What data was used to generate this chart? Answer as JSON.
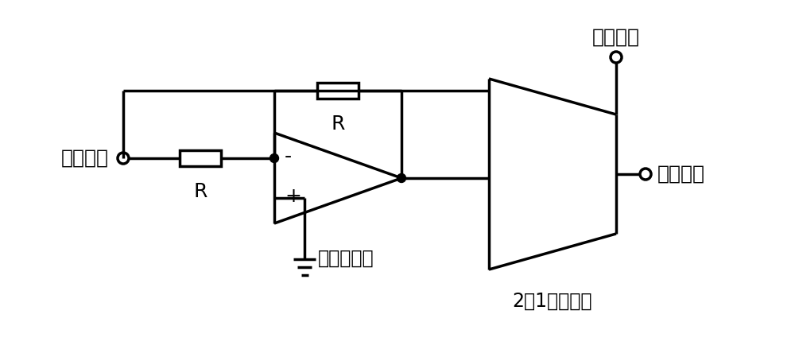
{
  "bg_color": "#ffffff",
  "line_color": "#000000",
  "line_width": 2.5,
  "labels": {
    "input_signal": "输入信号",
    "output_signal": "输出信号",
    "mask_signal": "掩膜信号",
    "opamp_label": "运算放大器",
    "mux_label": "2选1模拟开关",
    "R1": "R",
    "R2": "R",
    "minus": "-",
    "plus": "+"
  },
  "font_size": 18,
  "font_size_label": 17
}
